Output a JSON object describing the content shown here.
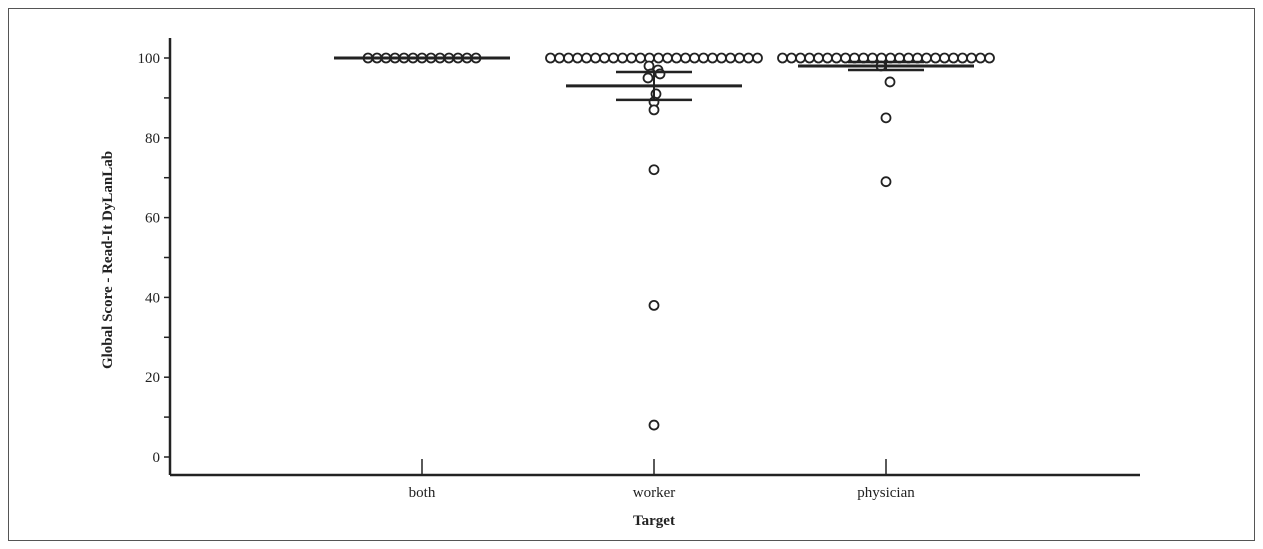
{
  "chart_data": {
    "type": "scatter",
    "title": "",
    "xlabel": "Target",
    "ylabel": "Global Score - Read-It DyLanLab",
    "categories": [
      "both",
      "worker",
      "physician"
    ],
    "ylim": [
      0,
      100
    ],
    "yticks": [
      0,
      20,
      40,
      60,
      80,
      100
    ],
    "yticklabels": [
      "0",
      "20",
      "40",
      "60",
      "80",
      "100"
    ],
    "grid": false,
    "legend": "none",
    "marker_color": "#222222",
    "points": [
      {
        "category": "both",
        "values": [
          100,
          100,
          100,
          100,
          100,
          100,
          100,
          100,
          100,
          100,
          100,
          100,
          100
        ]
      },
      {
        "category": "worker",
        "values": [
          100,
          100,
          100,
          100,
          100,
          100,
          100,
          100,
          100,
          100,
          100,
          100,
          100,
          100,
          100,
          100,
          100,
          100,
          100,
          100,
          100,
          100,
          100,
          100,
          98,
          97,
          96,
          96,
          95,
          91,
          89,
          87,
          72,
          38,
          8
        ]
      },
      {
        "category": "physician",
        "values": [
          100,
          100,
          100,
          100,
          100,
          100,
          100,
          100,
          100,
          100,
          100,
          100,
          100,
          100,
          100,
          100,
          100,
          100,
          100,
          100,
          100,
          100,
          100,
          100,
          98,
          94,
          85,
          69
        ]
      }
    ],
    "summary": [
      {
        "category": "both",
        "mean": 100,
        "lower": 100,
        "upper": 100
      },
      {
        "category": "worker",
        "mean": 93,
        "lower": 89.5,
        "upper": 96.5
      },
      {
        "category": "physician",
        "mean": 98,
        "lower": 97,
        "upper": 99
      }
    ]
  }
}
